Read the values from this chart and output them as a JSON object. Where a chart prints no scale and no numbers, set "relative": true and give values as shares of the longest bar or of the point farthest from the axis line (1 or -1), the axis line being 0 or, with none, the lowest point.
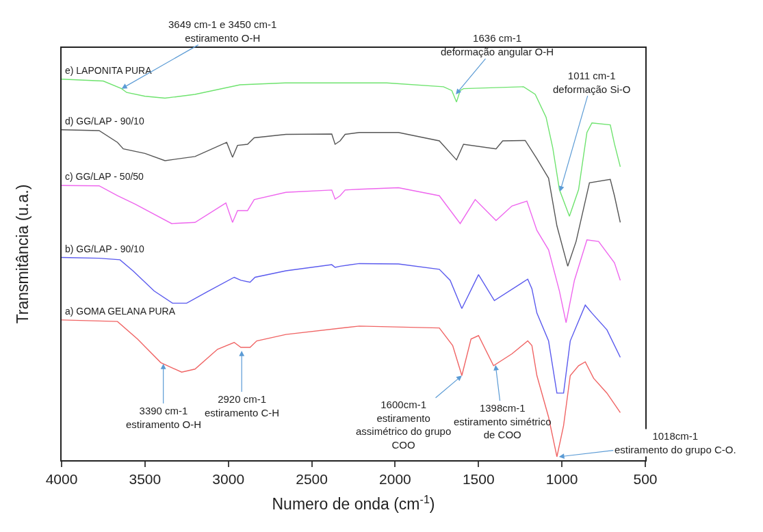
{
  "chart_data": {
    "type": "line",
    "relative": true,
    "xlabel": "Numero de onda (cm$^{-1}$)",
    "ylabel": "Transmitância (u.a.)",
    "xlim": [
      4000,
      500
    ],
    "xticks": [
      4000,
      3500,
      3000,
      2500,
      2000,
      1500,
      1000,
      500
    ],
    "legend": false,
    "marker": "none",
    "line_style": "solid",
    "series": [
      {
        "name": "e) LAPONITA PURA",
        "color": "#6ee36e",
        "x": [
          4000,
          3750,
          3640,
          3610,
          3500,
          3380,
          3200,
          2930,
          2660,
          2215,
          2050,
          1710,
          1660,
          1632,
          1610,
          1590,
          1230,
          1160,
          1095,
          1055,
          1015,
          955,
          900,
          850,
          820,
          710,
          685,
          650
        ],
        "values": [
          1.0,
          0.995,
          0.975,
          0.965,
          0.955,
          0.95,
          0.96,
          0.985,
          0.99,
          0.99,
          0.99,
          0.98,
          0.97,
          0.94,
          0.97,
          0.975,
          0.98,
          0.96,
          0.9,
          0.82,
          0.71,
          0.64,
          0.71,
          0.86,
          0.885,
          0.88,
          0.83,
          0.77
        ]
      },
      {
        "name": "d) GG/LAP - 90/10",
        "color": "#555555",
        "x": [
          4000,
          3775,
          3665,
          3630,
          3500,
          3380,
          3200,
          3010,
          2975,
          2945,
          2885,
          2845,
          2655,
          2380,
          2360,
          2330,
          2300,
          2215,
          1980,
          1735,
          1632,
          1590,
          1395,
          1355,
          1220,
          1150,
          1080,
          1030,
          965,
          915,
          835,
          710,
          685,
          650
        ],
        "values": [
          0.867,
          0.865,
          0.834,
          0.817,
          0.805,
          0.786,
          0.797,
          0.834,
          0.795,
          0.826,
          0.829,
          0.846,
          0.855,
          0.856,
          0.829,
          0.838,
          0.855,
          0.86,
          0.86,
          0.838,
          0.788,
          0.829,
          0.817,
          0.838,
          0.839,
          0.791,
          0.74,
          0.615,
          0.509,
          0.574,
          0.728,
          0.737,
          0.694,
          0.624
        ]
      },
      {
        "name": "c) GG/LAP - 50/50",
        "color": "#ee66ee",
        "x": [
          4000,
          3775,
          3665,
          3560,
          3340,
          3200,
          3015,
          2975,
          2945,
          2885,
          2845,
          2655,
          2380,
          2360,
          2330,
          2300,
          2215,
          1980,
          1735,
          1610,
          1520,
          1395,
          1300,
          1210,
          1150,
          1080,
          1015,
          975,
          925,
          850,
          780,
          685,
          650
        ],
        "values": [
          0.721,
          0.72,
          0.694,
          0.672,
          0.621,
          0.624,
          0.675,
          0.624,
          0.655,
          0.655,
          0.684,
          0.703,
          0.709,
          0.685,
          0.694,
          0.709,
          0.711,
          0.715,
          0.694,
          0.621,
          0.684,
          0.629,
          0.667,
          0.68,
          0.603,
          0.552,
          0.444,
          0.361,
          0.472,
          0.578,
          0.574,
          0.518,
          0.472
        ]
      },
      {
        "name": "b) GG/LAP - 90/10",
        "color": "#5a5aee",
        "x": [
          4000,
          3775,
          3650,
          3570,
          3445,
          3335,
          3250,
          3130,
          2965,
          2925,
          2870,
          2840,
          2655,
          2380,
          2360,
          2330,
          2215,
          1980,
          1735,
          1670,
          1600,
          1500,
          1405,
          1205,
          1180,
          1150,
          1080,
          1030,
          990,
          950,
          860,
          820,
          730,
          650
        ],
        "values": [
          0.532,
          0.53,
          0.526,
          0.496,
          0.444,
          0.412,
          0.412,
          0.441,
          0.48,
          0.472,
          0.467,
          0.48,
          0.497,
          0.513,
          0.506,
          0.509,
          0.516,
          0.515,
          0.501,
          0.472,
          0.398,
          0.487,
          0.419,
          0.475,
          0.45,
          0.386,
          0.313,
          0.176,
          0.176,
          0.313,
          0.407,
          0.386,
          0.342,
          0.27
        ]
      },
      {
        "name": "a) GOMA GELANA PURA",
        "color": "#f06464",
        "x": [
          4000,
          3665,
          3545,
          3405,
          3280,
          3200,
          3065,
          2965,
          2925,
          2870,
          2830,
          2655,
          2215,
          1735,
          1655,
          1600,
          1545,
          1500,
          1410,
          1300,
          1205,
          1180,
          1150,
          1080,
          1030,
          990,
          950,
          900,
          860,
          810,
          730,
          650
        ],
        "values": [
          0.368,
          0.364,
          0.318,
          0.256,
          0.231,
          0.239,
          0.291,
          0.309,
          0.296,
          0.296,
          0.313,
          0.33,
          0.352,
          0.347,
          0.301,
          0.222,
          0.318,
          0.327,
          0.248,
          0.279,
          0.313,
          0.301,
          0.222,
          0.113,
          0.009,
          0.091,
          0.222,
          0.248,
          0.258,
          0.215,
          0.176,
          0.125
        ]
      }
    ],
    "annotations": [
      {
        "text": "3649 cm-1 e 3450 cm-1\nestiramento O-H",
        "x": 3640,
        "y": 0.975
      },
      {
        "text": "1636 cm-1\ndeformação angular O-H",
        "x": 1636,
        "y": 0.96
      },
      {
        "text": "1011 cm-1\ndeformação Si-O",
        "x": 1011,
        "y": 0.705
      },
      {
        "text": "3390 cm-1\nestiramento O-H",
        "x": 3390,
        "y": 0.253
      },
      {
        "text": "2920 cm-1\nestiramento C-H",
        "x": 2920,
        "y": 0.287
      },
      {
        "text": "1600cm-1\nestiramento\nassimétrico do grupo\nCOO",
        "x": 1600,
        "y": 0.222
      },
      {
        "text": "1398cm-1\nestiramento simétrico\nde COO",
        "x": 1398,
        "y": 0.25
      },
      {
        "text": "1018cm-1\nestiramento do grupo C-O.",
        "x": 1018,
        "y": 0.009
      }
    ]
  }
}
